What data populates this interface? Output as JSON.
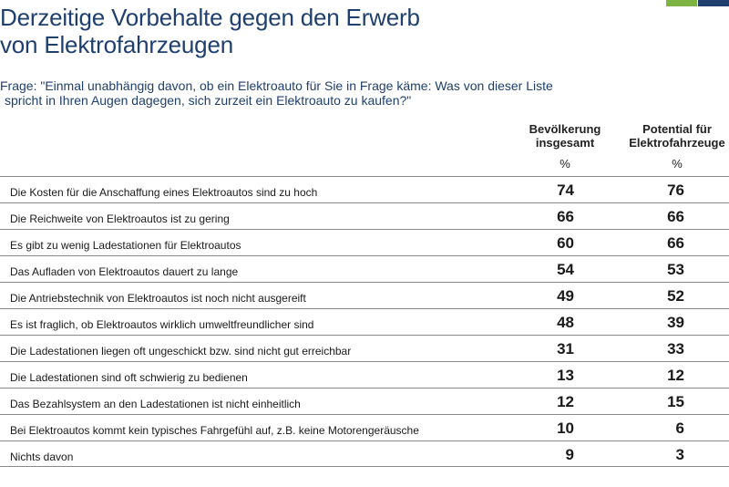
{
  "accent_colors": [
    "#7cb342",
    "#1f3f6e"
  ],
  "title_lines": [
    "Derzeitige Vorbehalte gegen den Erwerb",
    "von Elektrofahrzeugen"
  ],
  "question_lines": [
    "Frage: \"Einmal unabhängig davon, ob ein Elektroauto für Sie in Frage käme: Was von dieser Liste",
    "spricht in Ihren Augen dagegen, sich zurzeit ein Elektroauto zu kaufen?\""
  ],
  "chart_data": {
    "type": "table",
    "columns": [
      {
        "name_lines": [
          "Bevölkerung",
          "insgesamt"
        ],
        "unit": "%"
      },
      {
        "name_lines": [
          "Potential für",
          "Elektrofahrzeuge"
        ],
        "unit": "%"
      }
    ],
    "rows": [
      {
        "label": "Die Kosten für die Anschaffung eines Elektroautos sind zu hoch",
        "values": [
          74,
          76
        ]
      },
      {
        "label": "Die Reichweite von Elektroautos ist zu gering",
        "values": [
          66,
          66
        ]
      },
      {
        "label": "Es gibt zu wenig Ladestationen für Elektroautos",
        "values": [
          60,
          66
        ]
      },
      {
        "label": "Das Aufladen von Elektroautos dauert zu lange",
        "values": [
          54,
          53
        ]
      },
      {
        "label": "Die Antriebstechnik von Elektroautos ist noch nicht ausgereift",
        "values": [
          49,
          52
        ]
      },
      {
        "label": "Es ist fraglich, ob Elektroautos wirklich umweltfreundlicher sind",
        "values": [
          48,
          39
        ]
      },
      {
        "label": "Die Ladestationen liegen oft ungeschickt bzw. sind nicht gut erreichbar",
        "values": [
          31,
          33
        ]
      },
      {
        "label": "Die Ladestationen sind oft schwierig zu bedienen",
        "values": [
          13,
          12
        ]
      },
      {
        "label": "Das Bezahlsystem an den Ladestationen ist nicht einheitlich",
        "values": [
          12,
          15
        ]
      },
      {
        "label": "Bei Elektroautos kommt kein typisches Fahrgefühl auf, z.B. keine Motorengeräusche",
        "values": [
          10,
          6
        ]
      },
      {
        "label": "Nichts davon",
        "values": [
          9,
          3
        ]
      }
    ]
  }
}
